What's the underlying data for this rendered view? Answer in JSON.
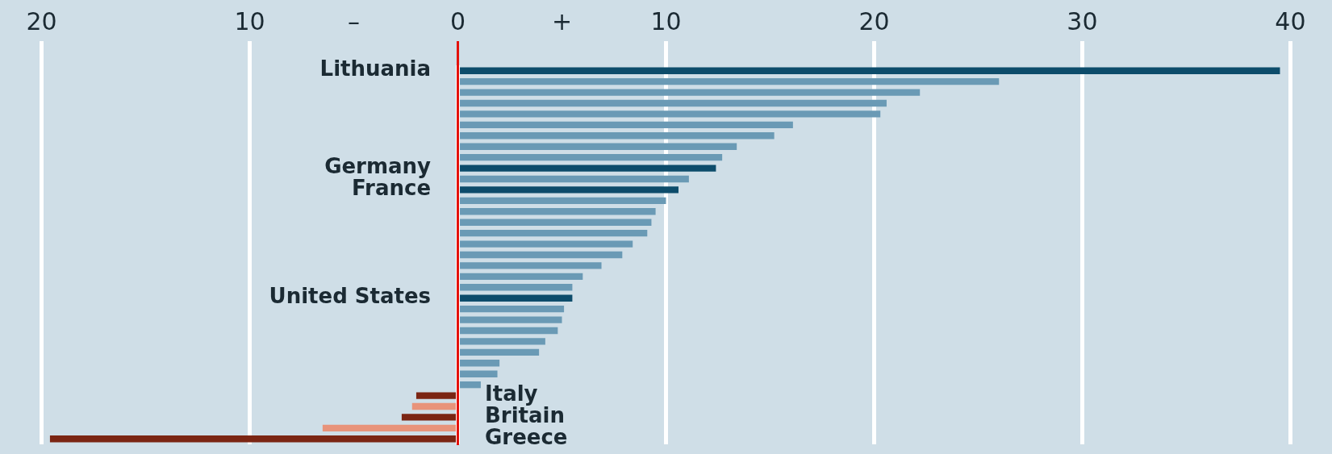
{
  "chart_data": {
    "type": "bar",
    "orientation": "horizontal",
    "categories": [
      "Lithuania",
      null,
      null,
      null,
      null,
      null,
      null,
      null,
      null,
      "Germany",
      null,
      "France",
      null,
      null,
      null,
      null,
      null,
      null,
      null,
      null,
      null,
      "United States",
      null,
      null,
      null,
      null,
      null,
      null,
      null,
      null,
      "Italy",
      null,
      "Britain",
      null,
      "Greece"
    ],
    "values": [
      39.5,
      26.0,
      22.2,
      20.6,
      20.3,
      16.1,
      15.2,
      13.4,
      12.7,
      12.4,
      11.1,
      10.6,
      10.0,
      9.5,
      9.3,
      9.1,
      8.4,
      7.9,
      6.9,
      6.0,
      5.5,
      5.5,
      5.1,
      5.0,
      4.8,
      4.2,
      3.9,
      2.0,
      1.9,
      1.1,
      -2.0,
      -2.2,
      -2.7,
      -6.5,
      -19.6
    ],
    "colors": [
      "#0d4c6b",
      "#6a9ab5",
      "#6a9ab5",
      "#6a9ab5",
      "#6a9ab5",
      "#6a9ab5",
      "#6a9ab5",
      "#6a9ab5",
      "#6a9ab5",
      "#0d4c6b",
      "#6a9ab5",
      "#0d4c6b",
      "#6a9ab5",
      "#6a9ab5",
      "#6a9ab5",
      "#6a9ab5",
      "#6a9ab5",
      "#6a9ab5",
      "#6a9ab5",
      "#6a9ab5",
      "#6a9ab5",
      "#0d4c6b",
      "#6a9ab5",
      "#6a9ab5",
      "#6a9ab5",
      "#6a9ab5",
      "#6a9ab5",
      "#6a9ab5",
      "#6a9ab5",
      "#6a9ab5",
      "#7b2513",
      "#e8937a",
      "#7b2513",
      "#e8937a",
      "#7b2513"
    ],
    "xlim": [
      -22,
      42
    ],
    "xticks": [
      {
        "value": -20,
        "label": "20"
      },
      {
        "value": -10,
        "label": "10"
      },
      {
        "value": -5,
        "label": "–"
      },
      0,
      {
        "value": 5,
        "label": "+"
      },
      10,
      20,
      30,
      40
    ],
    "grid": "x",
    "legend": false
  }
}
